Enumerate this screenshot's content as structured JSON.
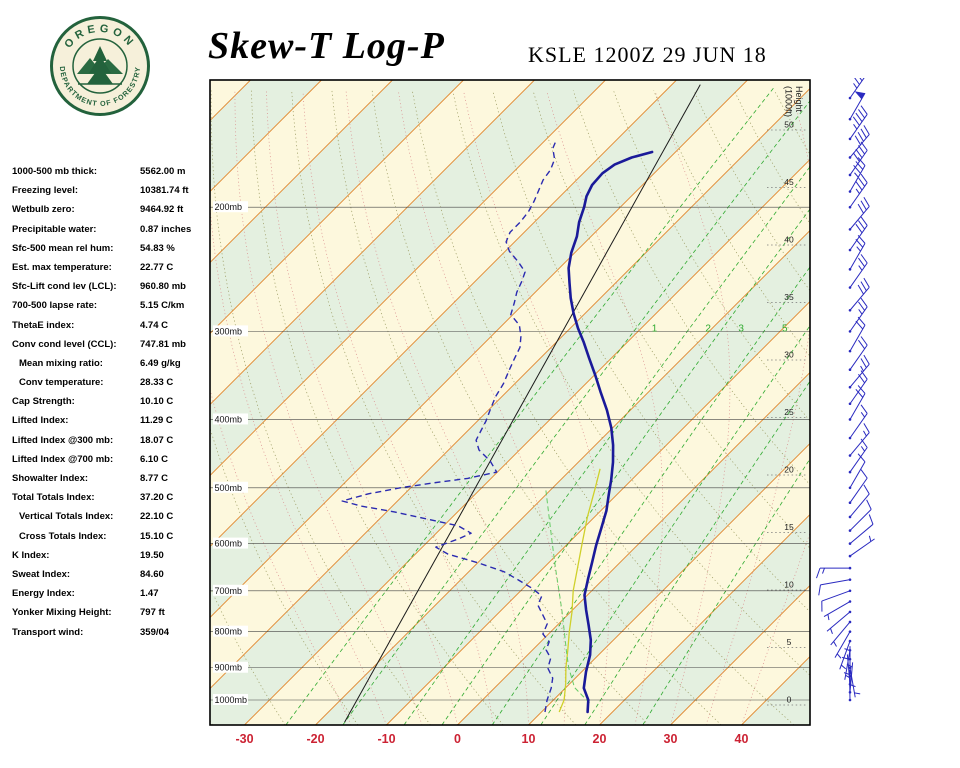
{
  "header": {
    "title": "Skew-T Log-P",
    "station_line": "KSLE 1200Z 29 JUN 18",
    "logo": {
      "org_top": "OREGON",
      "org_bottom": "DEPARTMENT OF FORESTRY"
    }
  },
  "indices": [
    {
      "label": "1000-500 mb thick:",
      "value": "5562.00 m",
      "indent": false
    },
    {
      "label": "Freezing level:",
      "value": "10381.74 ft",
      "indent": false
    },
    {
      "label": "Wetbulb zero:",
      "value": "9464.92 ft",
      "indent": false
    },
    {
      "label": "Precipitable water:",
      "value": "0.87 inches",
      "indent": false
    },
    {
      "label": "Sfc-500 mean rel hum:",
      "value": "54.83 %",
      "indent": false
    },
    {
      "label": "Est. max temperature:",
      "value": "22.77 C",
      "indent": false
    },
    {
      "label": "Sfc-Lift cond lev (LCL):",
      "value": "960.80 mb",
      "indent": false
    },
    {
      "label": "700-500 lapse rate:",
      "value": "5.15 C/km",
      "indent": false
    },
    {
      "label": "ThetaE index:",
      "value": "4.74 C",
      "indent": false
    },
    {
      "label": "Conv cond level (CCL):",
      "value": "747.81 mb",
      "indent": false
    },
    {
      "label": "Mean mixing ratio:",
      "value": "6.49 g/kg",
      "indent": true
    },
    {
      "label": "Conv temperature:",
      "value": "28.33 C",
      "indent": true
    },
    {
      "label": "Cap Strength:",
      "value": "10.10 C",
      "indent": false
    },
    {
      "label": "Lifted Index:",
      "value": "11.29 C",
      "indent": false
    },
    {
      "label": "Lifted Index @300 mb:",
      "value": "18.07 C",
      "indent": false
    },
    {
      "label": "Lifted Index @700 mb:",
      "value": "6.10 C",
      "indent": false
    },
    {
      "label": "Showalter Index:",
      "value": "8.77 C",
      "indent": false
    },
    {
      "label": "Total Totals Index:",
      "value": "37.20 C",
      "indent": false
    },
    {
      "label": "Vertical Totals Index:",
      "value": "22.10 C",
      "indent": true
    },
    {
      "label": "Cross Totals Index:",
      "value": "15.10 C",
      "indent": true
    },
    {
      "label": "K Index:",
      "value": "19.50",
      "indent": false
    },
    {
      "label": "Sweat Index:",
      "value": "84.60",
      "indent": false
    },
    {
      "label": "Energy Index:",
      "value": "1.47",
      "indent": false
    },
    {
      "label": "Yonker Mixing Height:",
      "value": "797 ft",
      "indent": false
    },
    {
      "label": "Transport wind:",
      "value": "359/04",
      "indent": false
    }
  ],
  "chart_data": {
    "type": "skewt-log-p",
    "x_axis": {
      "unit": "C",
      "ticks": [
        -30,
        -20,
        -10,
        0,
        10,
        20,
        30,
        40
      ]
    },
    "pressure_levels": [
      200,
      300,
      400,
      500,
      600,
      700,
      800,
      900,
      1000
    ],
    "pressure_label_suffix": "mb",
    "height_axis": {
      "title": "Height",
      "subtitle": "(1000ft)",
      "ticks": [
        0,
        5,
        10,
        15,
        20,
        25,
        30,
        35,
        40,
        45,
        50
      ]
    },
    "isotherm_step_c": 10,
    "mixing_ratio_lines": [
      0.5,
      1,
      2,
      3,
      5,
      8,
      12,
      20
    ],
    "mixing_ratio_labels": [
      1,
      2,
      3,
      5
    ],
    "reference_line": [
      [
        1075,
        -16.3
      ],
      [
        134,
        -56.0
      ]
    ],
    "temperature_profile": [
      [
        1040,
        16.5
      ],
      [
        1000,
        14.9
      ],
      [
        962,
        12.6
      ],
      [
        912,
        10.6
      ],
      [
        863,
        8.8
      ],
      [
        822,
        6.8
      ],
      [
        783,
        4.4
      ],
      [
        745,
        1.9
      ],
      [
        710,
        -0.4
      ],
      [
        671,
        -2.3
      ],
      [
        637,
        -4.0
      ],
      [
        603,
        -5.8
      ],
      [
        570,
        -7.5
      ],
      [
        539,
        -9.2
      ],
      [
        512,
        -11.1
      ],
      [
        487,
        -12.9
      ],
      [
        460,
        -15.1
      ],
      [
        435,
        -17.5
      ],
      [
        411,
        -20.2
      ],
      [
        388,
        -23.3
      ],
      [
        366,
        -26.7
      ],
      [
        346,
        -29.9
      ],
      [
        327,
        -33.2
      ],
      [
        311,
        -36.1
      ],
      [
        297,
        -38.9
      ],
      [
        283,
        -41.6
      ],
      [
        269,
        -44.2
      ],
      [
        256,
        -46.5
      ],
      [
        244,
        -48.7
      ],
      [
        232,
        -50.5
      ],
      [
        220,
        -52.0
      ],
      [
        210,
        -53.7
      ],
      [
        200,
        -55.1
      ],
      [
        193,
        -56.3
      ],
      [
        186,
        -57.1
      ],
      [
        179,
        -57.3
      ],
      [
        174,
        -56.8
      ],
      [
        170,
        -55.4
      ],
      [
        167,
        -53.3
      ]
    ],
    "dewpoint_profile": [
      [
        1040,
        10.5
      ],
      [
        1000,
        9.1
      ],
      [
        962,
        8.0
      ],
      [
        931,
        6.8
      ],
      [
        901,
        4.7
      ],
      [
        872,
        3.7
      ],
      [
        849,
        1.9
      ],
      [
        827,
        1.2
      ],
      [
        806,
        -0.8
      ],
      [
        780,
        -1.6
      ],
      [
        755,
        -3.7
      ],
      [
        733,
        -5.6
      ],
      [
        712,
        -6.3
      ],
      [
        694,
        -8.8
      ],
      [
        676,
        -11.8
      ],
      [
        658,
        -15.0
      ],
      [
        639,
        -19.9
      ],
      [
        621,
        -25.4
      ],
      [
        607,
        -28.1
      ],
      [
        591,
        -26.1
      ],
      [
        580,
        -25.1
      ],
      [
        566,
        -28.0
      ],
      [
        554,
        -33.2
      ],
      [
        541,
        -38.9
      ],
      [
        531,
        -44.3
      ],
      [
        522,
        -47.8
      ],
      [
        510,
        -45.1
      ],
      [
        500,
        -41.5
      ],
      [
        492,
        -37.4
      ],
      [
        485,
        -33.3
      ],
      [
        475,
        -30.1
      ],
      [
        458,
        -32.6
      ],
      [
        442,
        -35.7
      ],
      [
        428,
        -37.5
      ],
      [
        414,
        -38.2
      ],
      [
        402,
        -38.8
      ],
      [
        386,
        -39.9
      ],
      [
        371,
        -40.9
      ],
      [
        356,
        -41.6
      ],
      [
        342,
        -42.6
      ],
      [
        329,
        -43.5
      ],
      [
        316,
        -44.4
      ],
      [
        305,
        -45.8
      ],
      [
        294,
        -47.6
      ],
      [
        284,
        -50.3
      ],
      [
        273,
        -51.5
      ],
      [
        264,
        -52.6
      ],
      [
        255,
        -53.4
      ],
      [
        247,
        -54.3
      ],
      [
        239,
        -56.7
      ],
      [
        231,
        -59.4
      ],
      [
        224,
        -61.2
      ],
      [
        217,
        -62.0
      ],
      [
        210,
        -62.0
      ],
      [
        203,
        -62.3
      ],
      [
        196,
        -63.0
      ],
      [
        189,
        -63.9
      ],
      [
        183,
        -64.7
      ],
      [
        177,
        -65.1
      ],
      [
        171,
        -66.0
      ],
      [
        165,
        -67.8
      ],
      [
        161,
        -68.4
      ]
    ],
    "wetbulb_profile": [
      [
        1040,
        12.5
      ],
      [
        1000,
        11.5
      ],
      [
        950,
        9.5
      ],
      [
        900,
        7.2
      ],
      [
        850,
        5.0
      ],
      [
        800,
        2.6
      ],
      [
        750,
        0.2
      ],
      [
        700,
        -2.6
      ],
      [
        650,
        -5.2
      ],
      [
        600,
        -8.0
      ],
      [
        550,
        -11.0
      ],
      [
        500,
        -14.0
      ],
      [
        470,
        -16.0
      ]
    ],
    "parcel_profile": [
      [
        1010,
        15.5
      ],
      [
        960,
        11.2
      ],
      [
        900,
        7.6
      ],
      [
        850,
        4.8
      ],
      [
        800,
        1.9
      ],
      [
        750,
        -1.2
      ],
      [
        700,
        -4.6
      ],
      [
        650,
        -8.3
      ],
      [
        600,
        -12.2
      ],
      [
        550,
        -16.4
      ],
      [
        500,
        -21.0
      ]
    ],
    "winds": [
      {
        "p": 140,
        "dir": 35,
        "spd": 45
      },
      {
        "p": 150,
        "dir": 30,
        "spd": 50
      },
      {
        "p": 160,
        "dir": 35,
        "spd": 45
      },
      {
        "p": 170,
        "dir": 40,
        "spd": 40
      },
      {
        "p": 180,
        "dir": 35,
        "spd": 40
      },
      {
        "p": 190,
        "dir": 30,
        "spd": 35
      },
      {
        "p": 200,
        "dir": 35,
        "spd": 35
      },
      {
        "p": 215,
        "dir": 40,
        "spd": 30
      },
      {
        "p": 230,
        "dir": 35,
        "spd": 30
      },
      {
        "p": 245,
        "dir": 30,
        "spd": 25
      },
      {
        "p": 260,
        "dir": 35,
        "spd": 25
      },
      {
        "p": 280,
        "dir": 40,
        "spd": 30
      },
      {
        "p": 300,
        "dir": 35,
        "spd": 25
      },
      {
        "p": 320,
        "dir": 30,
        "spd": 20
      },
      {
        "p": 340,
        "dir": 35,
        "spd": 20
      },
      {
        "p": 360,
        "dir": 40,
        "spd": 25
      },
      {
        "p": 380,
        "dir": 35,
        "spd": 20
      },
      {
        "p": 400,
        "dir": 30,
        "spd": 20
      },
      {
        "p": 425,
        "dir": 35,
        "spd": 15
      },
      {
        "p": 450,
        "dir": 40,
        "spd": 15
      },
      {
        "p": 475,
        "dir": 35,
        "spd": 15
      },
      {
        "p": 500,
        "dir": 30,
        "spd": 10
      },
      {
        "p": 525,
        "dir": 35,
        "spd": 10
      },
      {
        "p": 550,
        "dir": 40,
        "spd": 10
      },
      {
        "p": 575,
        "dir": 45,
        "spd": 10
      },
      {
        "p": 600,
        "dir": 50,
        "spd": 10
      },
      {
        "p": 625,
        "dir": 55,
        "spd": 5
      },
      {
        "p": 650,
        "dir": 270,
        "spd": 15
      },
      {
        "p": 675,
        "dir": 260,
        "spd": 10
      },
      {
        "p": 700,
        "dir": 250,
        "spd": 10
      },
      {
        "p": 725,
        "dir": 240,
        "spd": 5
      },
      {
        "p": 750,
        "dir": 230,
        "spd": 5
      },
      {
        "p": 775,
        "dir": 220,
        "spd": 5
      },
      {
        "p": 800,
        "dir": 210,
        "spd": 5
      },
      {
        "p": 825,
        "dir": 200,
        "spd": 5
      },
      {
        "p": 850,
        "dir": 190,
        "spd": 5
      },
      {
        "p": 875,
        "dir": 180,
        "spd": 5
      },
      {
        "p": 900,
        "dir": 170,
        "spd": 5
      },
      {
        "p": 925,
        "dir": 360,
        "spd": 4
      },
      {
        "p": 950,
        "dir": 355,
        "spd": 4
      },
      {
        "p": 975,
        "dir": 5,
        "spd": 4
      },
      {
        "p": 1000,
        "dir": 359,
        "spd": 4
      }
    ],
    "colors": {
      "band_yellow": "#fdf8dd",
      "band_green": "#e4f0e0",
      "isotherm": "#e0862c",
      "dry_adiabat": "#9a9a60",
      "moist_adiabat": "#d98b8b",
      "mixing_ratio": "#2faa2f",
      "pressure_line": "#444444",
      "temperature": "#1a1a99",
      "dewpoint": "#2a2ab0",
      "wetbulb": "#cfd02a",
      "parcel": "#66cc66",
      "reference": "#1a1a1a",
      "wind_barb": "#2a2ac0",
      "axis_red": "#cc2233",
      "label_dark": "#222222",
      "logo_green": "#23623c",
      "logo_cream": "#f6f0da"
    }
  }
}
